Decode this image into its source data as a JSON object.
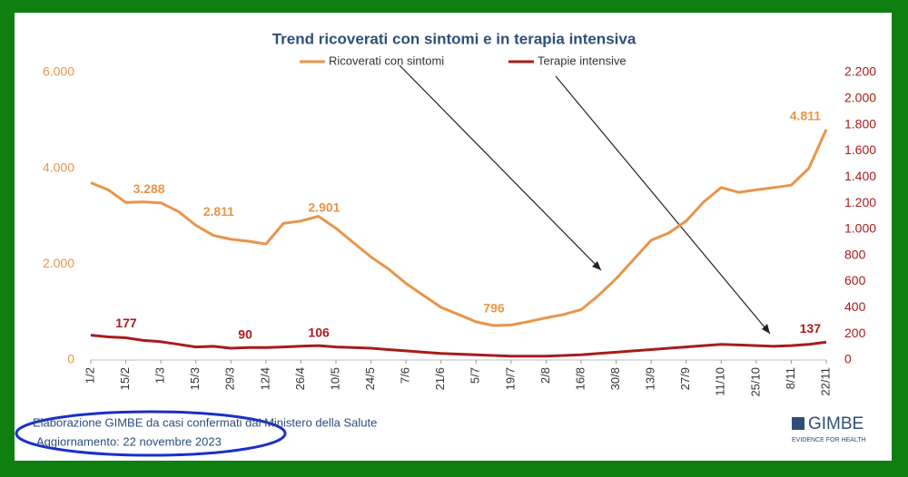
{
  "chart_data": {
    "type": "line",
    "title": "Trend ricoverati con sintomi e in terapia intensiva",
    "categories": [
      "1/2",
      null,
      "15/2",
      null,
      "1/3",
      null,
      "15/3",
      null,
      "29/3",
      null,
      "12/4",
      null,
      "26/4",
      null,
      "10/5",
      null,
      "24/5",
      null,
      "7/6",
      null,
      "21/6",
      null,
      "5/7",
      null,
      "19/7",
      null,
      "2/8",
      null,
      "16/8",
      null,
      "30/8",
      null,
      "13/9",
      null,
      "27/9",
      null,
      "11/10",
      null,
      "25/10",
      null,
      "8/11",
      null,
      "22/11"
    ],
    "series": [
      {
        "name": "Ricoverati con sintomi",
        "color": "#e8954a",
        "values": [
          3700,
          3550,
          3288,
          3300,
          3280,
          3100,
          2811,
          2600,
          2520,
          2480,
          2420,
          2850,
          2901,
          3000,
          2750,
          2450,
          2150,
          1900,
          1600,
          1350,
          1100,
          950,
          796,
          720,
          730,
          800,
          880,
          950,
          1050,
          1350,
          1700,
          2100,
          2500,
          2650,
          2900,
          3300,
          3600,
          3500,
          3550,
          3600,
          3650,
          4000,
          4811
        ],
        "value_labels": [
          null,
          null,
          "3.288",
          null,
          null,
          null,
          "2.811",
          null,
          null,
          null,
          null,
          null,
          "2.901",
          null,
          null,
          null,
          null,
          null,
          null,
          null,
          null,
          null,
          "796",
          null,
          null,
          null,
          null,
          null,
          null,
          null,
          null,
          null,
          null,
          null,
          null,
          null,
          null,
          null,
          null,
          null,
          null,
          null,
          "4.811"
        ]
      },
      {
        "name": "Terapie intensive",
        "color": "#a81c1c",
        "axis": "y2",
        "values": [
          190,
          177,
          170,
          150,
          140,
          120,
          100,
          105,
          90,
          95,
          95,
          100,
          106,
          110,
          100,
          95,
          90,
          80,
          70,
          60,
          50,
          45,
          40,
          35,
          30,
          30,
          30,
          35,
          40,
          50,
          60,
          70,
          80,
          90,
          100,
          110,
          120,
          115,
          110,
          105,
          110,
          120,
          137
        ],
        "value_labels": [
          null,
          "177",
          null,
          null,
          null,
          null,
          null,
          null,
          "90",
          null,
          null,
          null,
          "106",
          null,
          null,
          null,
          null,
          null,
          null,
          null,
          null,
          null,
          null,
          null,
          null,
          null,
          null,
          null,
          null,
          null,
          null,
          null,
          null,
          null,
          null,
          null,
          null,
          null,
          null,
          null,
          null,
          null,
          "137"
        ]
      }
    ],
    "ylim": [
      0,
      6000
    ],
    "yticks": [
      0,
      {
        "value": 2000,
        "label": "2.000"
      },
      {
        "value": 4000,
        "label": "4.000"
      },
      {
        "value": 6000,
        "label": "6.000"
      }
    ],
    "y2lim": [
      0,
      2200
    ],
    "y2ticks": [
      0,
      200,
      400,
      600,
      800,
      {
        "value": 1000,
        "label": "1.000"
      },
      {
        "value": 1200,
        "label": "1.200"
      },
      {
        "value": 1400,
        "label": "1.400"
      },
      {
        "value": 1600,
        "label": "1.600"
      },
      {
        "value": 1800,
        "label": "1.800"
      },
      {
        "value": 2000,
        "label": "2.000"
      },
      {
        "value": 2200,
        "label": "2.200"
      }
    ],
    "grid": false
  },
  "footer": {
    "source": "Elaborazione GIMBE da casi confermati dal Ministero della Salute",
    "updated": "Aggiornamento: 22 novembre 2023",
    "logo": "GIMBE",
    "logo_tagline": "EVIDENCE FOR HEALTH"
  }
}
